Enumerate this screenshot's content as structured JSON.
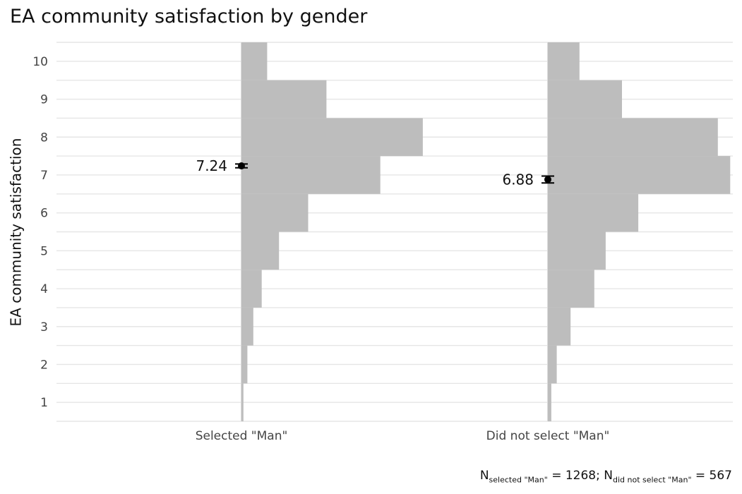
{
  "chart_data": {
    "type": "histogram",
    "title": "EA community satisfaction by gender",
    "ylabel": "EA community satisfaction",
    "xlabel": "",
    "ylim": [
      0.5,
      10.5
    ],
    "y_ticks": [
      1,
      2,
      3,
      4,
      5,
      6,
      7,
      8,
      9,
      10
    ],
    "bins": [
      0.5,
      1.5,
      2.5,
      3.5,
      4.5,
      5.5,
      6.5,
      7.5,
      8.5,
      9.5,
      10.5
    ],
    "groups": [
      {
        "name": "Selected \"Man\"",
        "proportions": [
          0.004,
          0.012,
          0.024,
          0.041,
          0.076,
          0.135,
          0.281,
          0.367,
          0.172,
          0.052
        ],
        "mean": 7.24,
        "ci": [
          7.19,
          7.29
        ],
        "mean_label": "7.24"
      },
      {
        "name": "Did not select \"Man\"",
        "proportions": [
          0.007,
          0.018,
          0.046,
          0.094,
          0.117,
          0.183,
          0.369,
          0.344,
          0.15,
          0.064
        ],
        "mean": 6.88,
        "ci": [
          6.79,
          6.97
        ],
        "mean_label": "6.88"
      }
    ],
    "caption": {
      "n_prefix": "N",
      "sub1": "selected \"Man\"",
      "val1": " = 1268; N",
      "sub2": "did not select \"Man\"",
      "val2": " = 567"
    },
    "colors": {
      "bar": "#bdbdbd",
      "grid": "#e6e6e6",
      "axis_line": "#dcdcdc",
      "point": "#000000"
    }
  }
}
